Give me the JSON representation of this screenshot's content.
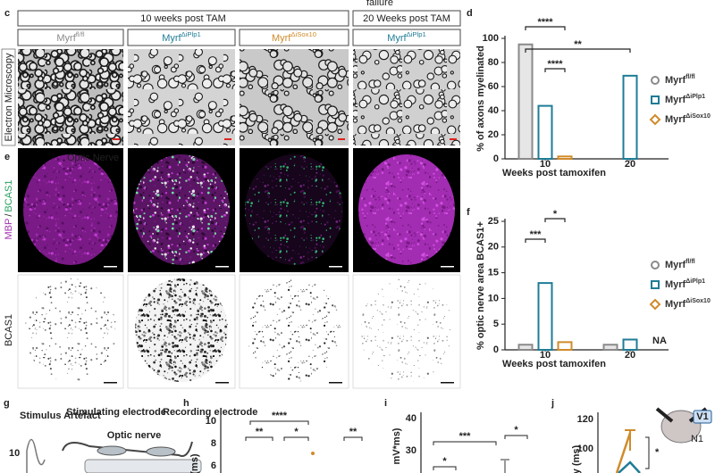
{
  "caption_fragment": "failure",
  "panels": {
    "c": "c",
    "e": "e",
    "d": "d",
    "f": "f",
    "g": "g",
    "h": "h",
    "i": "i",
    "j": "j"
  },
  "header": {
    "group1": "10 weeks post TAM",
    "group2": "20 Weeks post TAM"
  },
  "columns": [
    {
      "name": "Myrf",
      "sup": "fl/fl",
      "color": "#8a8a8a"
    },
    {
      "name": "Myrf",
      "sup": "ΔiPlp1",
      "color": "#1f7c96"
    },
    {
      "name": "Myrf",
      "sup": "ΔiSox10",
      "color": "#d08b2c"
    },
    {
      "name": "Myrf",
      "sup": "ΔiPlp1",
      "color": "#1f7c96"
    }
  ],
  "row_labels": {
    "em": "Electron Microscopy",
    "mbp": "MBP",
    "sep": "/",
    "bcas1": "BCAS1",
    "bcas1_row": "BCAS1"
  },
  "image_label": "Optic Nerve",
  "chart_data": [
    {
      "type": "bar",
      "ylabel": "% of axons myelinated",
      "xlabel": "Weeks post tamoxifen",
      "categories": [
        "10",
        "20"
      ],
      "ylim": [
        0,
        100
      ],
      "yticks": [
        0,
        20,
        40,
        60,
        80,
        100
      ],
      "series": [
        {
          "name": "Myrf",
          "sup": "fl/fl",
          "color": "#8a8a8a",
          "values": [
            95,
            null
          ]
        },
        {
          "name": "Myrf",
          "sup": "ΔiPlp1",
          "color": "#1f7c96",
          "values": [
            44,
            69
          ]
        },
        {
          "name": "Myrf",
          "sup": "ΔiSox10",
          "color": "#d08b2c",
          "values": [
            2,
            null
          ]
        }
      ],
      "annotations": [
        "****",
        "****",
        "**"
      ]
    },
    {
      "type": "bar",
      "ylabel": "% optic nerve area BCAS1+",
      "xlabel": "Weeks post tamoxifen",
      "categories": [
        "10",
        "20"
      ],
      "ylim": [
        0,
        25
      ],
      "yticks": [
        0,
        5,
        10,
        15,
        20,
        25
      ],
      "series": [
        {
          "name": "Myrf",
          "sup": "fl/fl",
          "color": "#8a8a8a",
          "values": [
            1,
            1
          ]
        },
        {
          "name": "Myrf",
          "sup": "ΔiPlp1",
          "color": "#1f7c96",
          "values": [
            13,
            2
          ]
        },
        {
          "name": "Myrf",
          "sup": "ΔiSox10",
          "color": "#d08b2c",
          "values": [
            1.5,
            null
          ]
        }
      ],
      "annotations": [
        "***",
        "*",
        "NA"
      ]
    }
  ],
  "panel_g": {
    "labels": [
      "Stimulus Artefact",
      "Stimulating electrode",
      "Recording electrode",
      "Optic nerve"
    ],
    "tick": "10"
  },
  "panel_h": {
    "ticks": [
      "10",
      "8",
      "6"
    ],
    "ylabel": "(ms)",
    "stars": [
      "****",
      "**",
      "*",
      "**"
    ]
  },
  "panel_i": {
    "ticks": [
      "40",
      "30"
    ],
    "ylabel": "mV*ms)",
    "stars": [
      "***",
      "*",
      "*"
    ]
  },
  "panel_j": {
    "ticks": [
      "120",
      "100"
    ],
    "ylabel": "y (ms)",
    "stars": [
      "*"
    ],
    "icon_labels": [
      "V1",
      "N1"
    ]
  }
}
